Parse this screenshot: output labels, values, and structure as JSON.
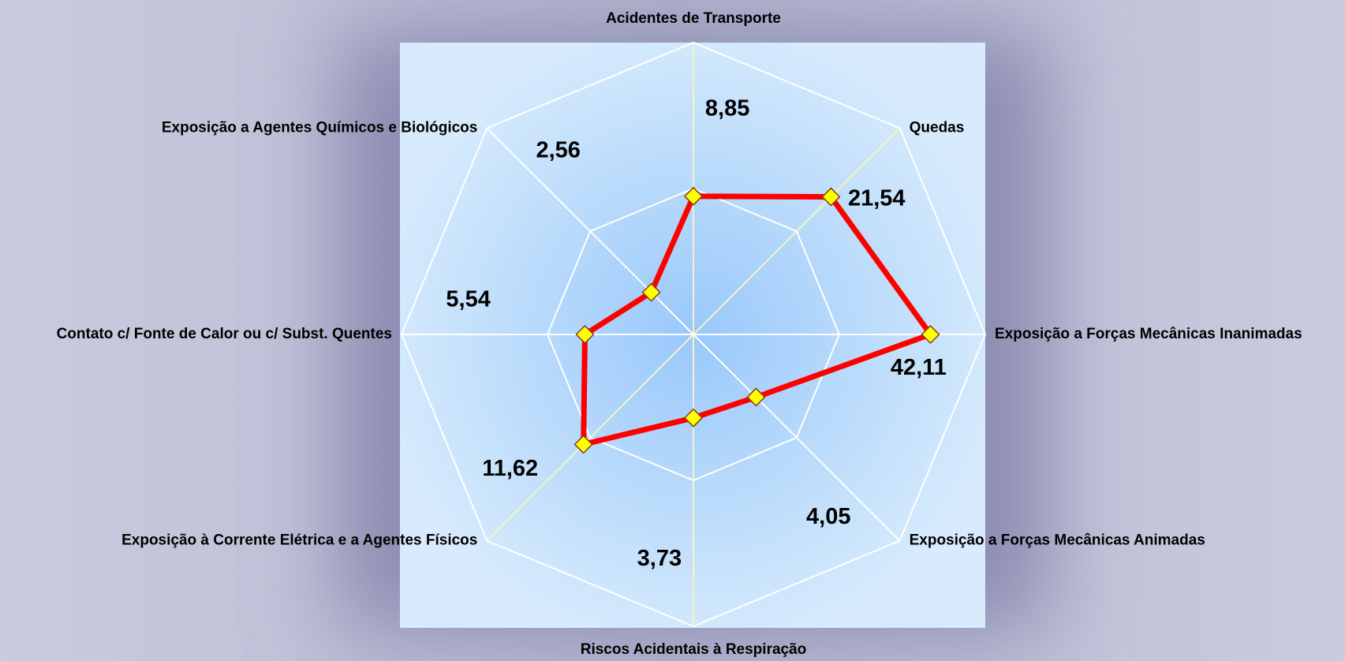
{
  "chart_data": {
    "type": "radar",
    "categories": [
      "Acidentes de Transporte",
      "Quedas",
      "Exposição a Forças Mecânicas Inanimadas",
      "Exposição a Forças Mecânicas Animadas",
      "Riscos Acidentais à Respiração",
      "Exposição à Corrente Elétrica e a Agentes Físicos",
      "Contato c/ Fonte de Calor ou c/ Subst. Quentes",
      "Exposição a Agentes Químicos e Biológicos"
    ],
    "values": [
      8.85,
      21.54,
      42.11,
      4.05,
      3.73,
      11.62,
      5.54,
      2.56
    ],
    "value_labels": [
      "8,85",
      "21,54",
      "42,11",
      "4,05",
      "3,73",
      "11,62",
      "5,54",
      "2,56"
    ],
    "color": "#ff0000",
    "marker_color": "#ffff00",
    "rlim": [
      1,
      100
    ],
    "rticks": [
      1,
      10,
      100
    ],
    "log_scale": true,
    "grid": true
  }
}
